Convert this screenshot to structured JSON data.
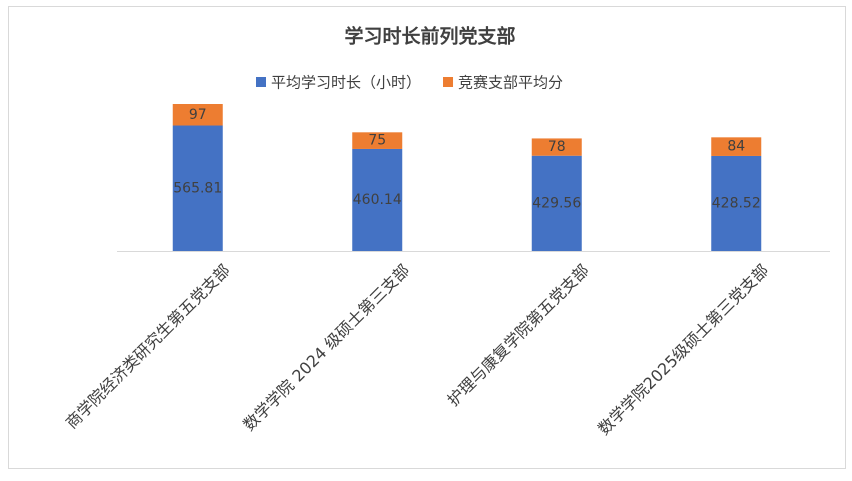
{
  "chart_data": {
    "type": "bar",
    "stacked": true,
    "title": "学习时长前列党支部",
    "categories": [
      "商学院经济类研究生第五党支部",
      "数学学院 2024 级硕士第三支部",
      "护理与康复学院第五党支部",
      "数学学院2025级硕士第三党支部"
    ],
    "series": [
      {
        "name": "平均学习时长（小时）",
        "color": "#4472c4",
        "values": [
          565.81,
          460.14,
          429.56,
          428.52
        ]
      },
      {
        "name": "竞赛支部平均分",
        "color": "#ed7d31",
        "values": [
          97,
          75,
          78,
          84
        ]
      }
    ]
  }
}
